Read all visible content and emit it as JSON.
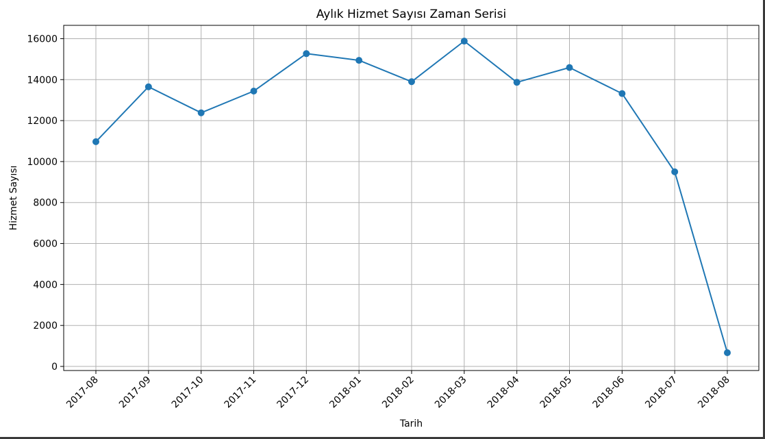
{
  "chart_data": {
    "type": "line",
    "title": "Aylık Hizmet Sayısı Zaman Serisi",
    "xlabel": "Tarih",
    "ylabel": "Hizmet Sayısı",
    "categories": [
      "2017-08",
      "2017-09",
      "2017-10",
      "2017-11",
      "2017-12",
      "2018-01",
      "2018-02",
      "2018-03",
      "2018-04",
      "2018-05",
      "2018-06",
      "2018-07",
      "2018-08"
    ],
    "series": [
      {
        "values": [
          10970,
          13650,
          12380,
          13440,
          15270,
          14940,
          13900,
          15880,
          13870,
          14590,
          13320,
          9500,
          670
        ],
        "color": "#1f77b4",
        "marker": "circle"
      }
    ],
    "ylim": [
      -200,
      16650
    ],
    "yticks": [
      0,
      2000,
      4000,
      6000,
      8000,
      10000,
      12000,
      14000,
      16000
    ],
    "xtick_rotation": 45,
    "grid": true,
    "legend": "none"
  }
}
